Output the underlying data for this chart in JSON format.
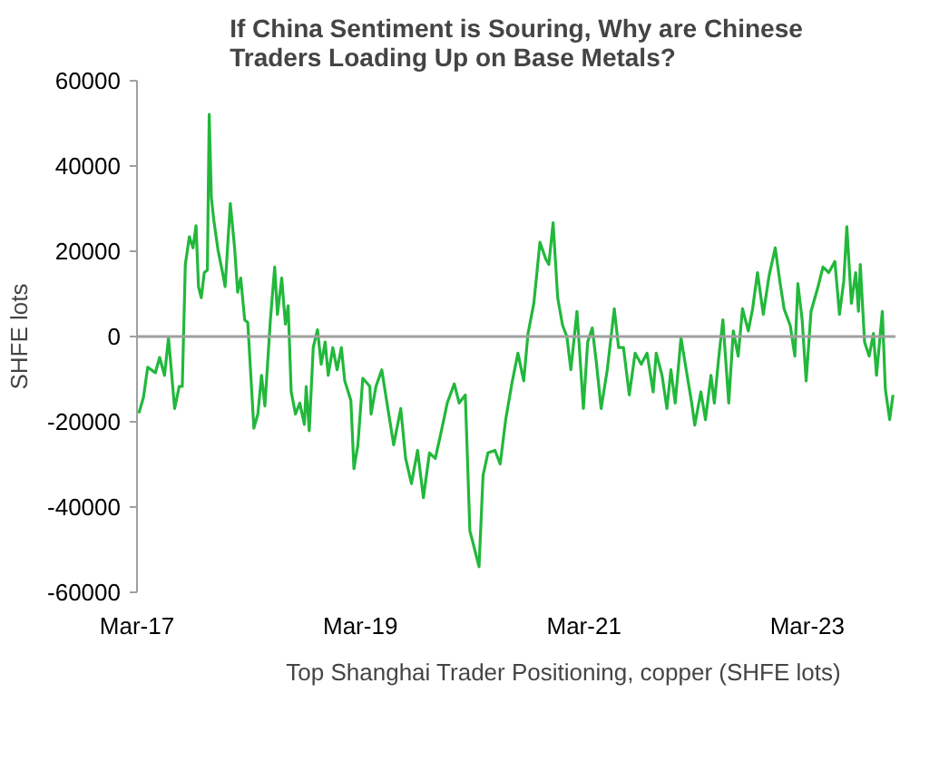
{
  "chart_data": {
    "type": "line",
    "title": "If China Sentiment is Souring, Why are Chinese\nTraders Loading Up on Base Metals?",
    "ylabel": "SHFE lots",
    "xlim": [
      "2017-03-01",
      "2023-12-14"
    ],
    "xticks": [
      {
        "value": "2017-03-01",
        "label": "Mar-17"
      },
      {
        "value": "2019-03-01",
        "label": "Mar-19"
      },
      {
        "value": "2021-03-01",
        "label": "Mar-21"
      },
      {
        "value": "2023-03-01",
        "label": "Mar-23"
      }
    ],
    "ylim": [
      -60000,
      60000
    ],
    "yticks": [
      -60000,
      -40000,
      -20000,
      0,
      20000,
      40000,
      60000
    ],
    "legend": "bottom",
    "line_style": "solid",
    "ref_lines": [
      {
        "axis": "y",
        "value": 0,
        "color": "#a0a0a0"
      }
    ],
    "series": [
      {
        "name": "Top Shanghai Trader Positioning, copper (SHFE lots)",
        "color": "#22b83c",
        "x": [
          "2017-03-07",
          "2017-03-22",
          "2017-04-05",
          "2017-04-30",
          "2017-05-14",
          "2017-05-30",
          "2017-06-12",
          "2017-07-02",
          "2017-07-17",
          "2017-07-27",
          "2017-08-06",
          "2017-08-19",
          "2017-08-31",
          "2017-09-10",
          "2017-09-18",
          "2017-09-27",
          "2017-10-07",
          "2017-10-17",
          "2017-10-23",
          "2017-10-30",
          "2017-11-07",
          "2017-11-21",
          "2017-12-04",
          "2017-12-14",
          "2017-12-31",
          "2018-01-14",
          "2018-01-24",
          "2018-02-03",
          "2018-02-16",
          "2018-02-26",
          "2018-03-18",
          "2018-03-31",
          "2018-04-12",
          "2018-04-23",
          "2018-05-11",
          "2018-05-25",
          "2018-06-03",
          "2018-06-17",
          "2018-06-29",
          "2018-07-08",
          "2018-07-18",
          "2018-08-01",
          "2018-08-15",
          "2018-08-30",
          "2018-09-05",
          "2018-09-15",
          "2018-09-28",
          "2018-10-12",
          "2018-10-24",
          "2018-11-06",
          "2018-11-16",
          "2018-12-01",
          "2018-12-15",
          "2018-12-29",
          "2019-01-09",
          "2019-01-29",
          "2019-02-08",
          "2019-02-21",
          "2019-03-09",
          "2019-04-01",
          "2019-04-05",
          "2019-04-21",
          "2019-05-10",
          "2019-05-30",
          "2019-06-18",
          "2019-07-11",
          "2019-07-27",
          "2019-08-15",
          "2019-09-04",
          "2019-09-23",
          "2019-10-13",
          "2019-11-01",
          "2019-11-21",
          "2019-12-10",
          "2020-01-02",
          "2020-01-18",
          "2020-02-07",
          "2020-02-22",
          "2020-03-07",
          "2020-03-23",
          "2020-04-05",
          "2020-04-21",
          "2020-05-14",
          "2020-05-31",
          "2020-06-18",
          "2020-07-08",
          "2020-07-28",
          "2020-08-16",
          "2020-08-30",
          "2020-09-18",
          "2020-10-08",
          "2020-10-27",
          "2020-11-06",
          "2020-11-20",
          "2020-12-05",
          "2020-12-21",
          "2021-01-04",
          "2021-01-17",
          "2021-02-06",
          "2021-02-27",
          "2021-03-13",
          "2021-03-28",
          "2021-04-11",
          "2021-04-26",
          "2021-05-16",
          "2021-06-08",
          "2021-06-22",
          "2021-07-08",
          "2021-07-27",
          "2021-08-15",
          "2021-09-04",
          "2021-09-23",
          "2021-10-13",
          "2021-10-23",
          "2021-11-11",
          "2021-11-27",
          "2021-12-10",
          "2021-12-24",
          "2022-01-12",
          "2022-02-01",
          "2022-02-16",
          "2022-02-26",
          "2022-03-18",
          "2022-04-02",
          "2022-04-20",
          "2022-05-01",
          "2022-05-15",
          "2022-05-29",
          "2022-06-17",
          "2022-07-02",
          "2022-07-18",
          "2022-08-01",
          "2022-08-20",
          "2022-09-03",
          "2022-09-19",
          "2022-10-08",
          "2022-10-27",
          "2022-11-16",
          "2022-12-01",
          "2022-12-15",
          "2023-01-04",
          "2023-01-19",
          "2023-01-29",
          "2023-02-12",
          "2023-02-25",
          "2023-03-13",
          "2023-04-05",
          "2023-04-21",
          "2023-05-10",
          "2023-05-30",
          "2023-06-14",
          "2023-06-28",
          "2023-07-08",
          "2023-07-23",
          "2023-08-06",
          "2023-08-15",
          "2023-08-21",
          "2023-09-04",
          "2023-09-19",
          "2023-10-03",
          "2023-10-13",
          "2023-11-01",
          "2023-11-11",
          "2023-11-25",
          "2023-12-06"
        ],
        "values": [
          -18000,
          -14300,
          -7200,
          -8500,
          -4900,
          -9100,
          -300,
          -16900,
          -11700,
          -11700,
          16900,
          23400,
          20800,
          26000,
          11700,
          9100,
          15000,
          15600,
          52100,
          32600,
          27300,
          20200,
          15600,
          11700,
          31200,
          20800,
          10400,
          13700,
          3900,
          3300,
          -21500,
          -18200,
          -9100,
          -16300,
          3900,
          16300,
          5200,
          13700,
          2900,
          7200,
          -13000,
          -18200,
          -15600,
          -20600,
          -11700,
          -22100,
          -2600,
          1600,
          -6500,
          -1300,
          -9100,
          -2600,
          -7800,
          -2600,
          -10400,
          -15000,
          -31000,
          -25400,
          -9800,
          -11700,
          -18200,
          -11700,
          -7800,
          -16900,
          -25400,
          -16900,
          -28600,
          -34500,
          -26700,
          -37800,
          -27300,
          -28600,
          -22100,
          -15600,
          -11100,
          -15600,
          -13700,
          -45600,
          -49500,
          -54000,
          -32600,
          -27300,
          -26700,
          -29900,
          -19500,
          -11100,
          -3900,
          -10400,
          700,
          7800,
          22100,
          18200,
          16900,
          26700,
          9100,
          2600,
          0,
          -7800,
          5900,
          -16900,
          -1300,
          2000,
          -6500,
          -16900,
          -7800,
          6500,
          -2600,
          -2600,
          -13700,
          -3900,
          -6500,
          -3900,
          -13000,
          -3900,
          -9100,
          -16900,
          -7800,
          -15600,
          -300,
          -9100,
          -15600,
          -20800,
          -13000,
          -19500,
          -9100,
          -15600,
          -5200,
          3900,
          -15600,
          1300,
          -4600,
          6500,
          1300,
          6500,
          15000,
          5200,
          14300,
          20800,
          13000,
          6500,
          2600,
          -4600,
          12400,
          3900,
          -10400,
          5900,
          11700,
          16300,
          15000,
          17600,
          5200,
          13000,
          25800,
          7800,
          15000,
          5900,
          16900,
          -1300,
          -4600,
          700,
          -9100,
          5900,
          -12400,
          -19500,
          -13700
        ]
      }
    ]
  }
}
